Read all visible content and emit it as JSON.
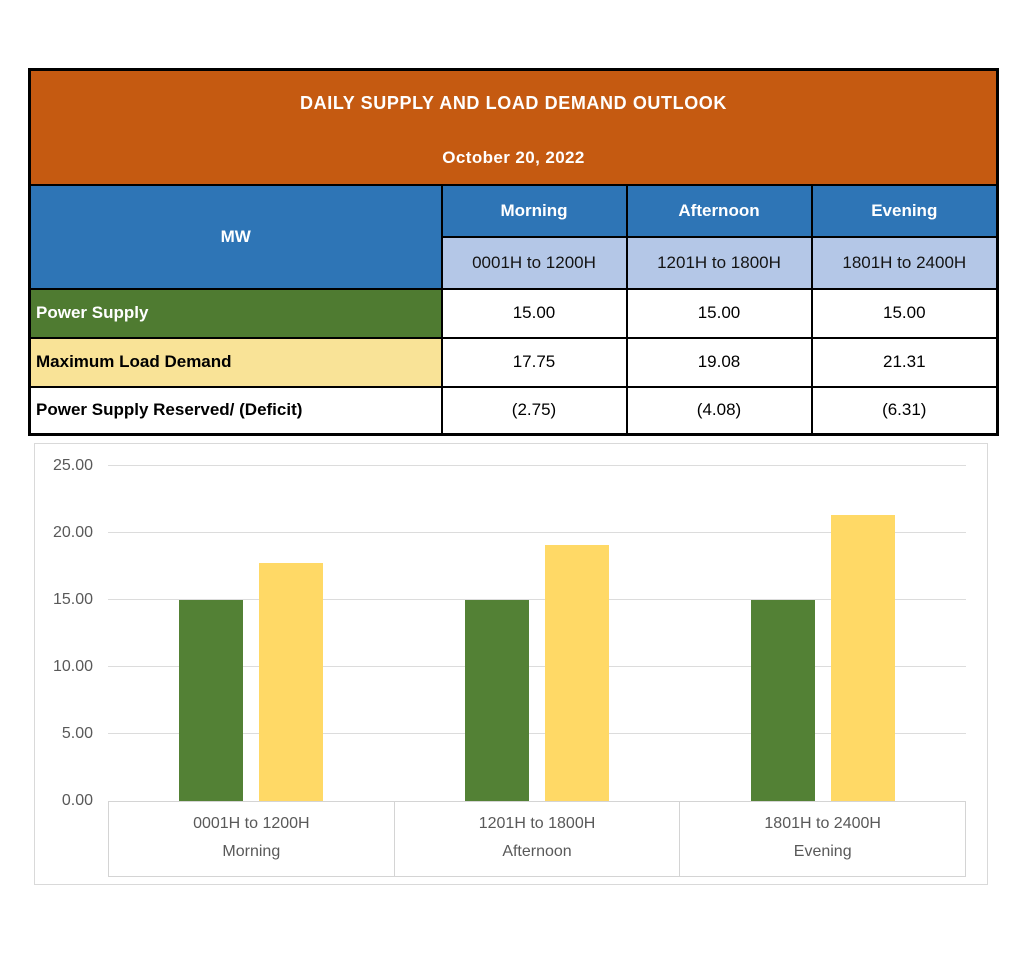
{
  "table": {
    "title": "DAILY SUPPLY AND LOAD DEMAND OUTLOOK",
    "date": "October 20, 2022",
    "unit_label": "MW",
    "col_headers": [
      {
        "period": "Morning",
        "hours": "0001H to 1200H"
      },
      {
        "period": "Afternoon",
        "hours": "1201H to 1800H"
      },
      {
        "period": "Evening",
        "hours": "1801H to 2400H"
      }
    ],
    "rows": [
      {
        "label": "Power Supply",
        "values": [
          "15.00",
          "15.00",
          "15.00"
        ]
      },
      {
        "label": "Maximum Load Demand",
        "values": [
          "17.75",
          "19.08",
          "21.31"
        ]
      },
      {
        "label": "Power Supply Reserved/ (Deficit)",
        "values": [
          "(2.75)",
          "(4.08)",
          "(6.31)"
        ]
      }
    ]
  },
  "chart_data": {
    "type": "bar",
    "title": "",
    "xlabel": "",
    "ylabel": "",
    "categories": [
      {
        "hours": "0001H to 1200H",
        "period": "Morning"
      },
      {
        "hours": "1201H to 1800H",
        "period": "Afternoon"
      },
      {
        "hours": "1801H to 2400H",
        "period": "Evening"
      }
    ],
    "series": [
      {
        "name": "Power Supply",
        "color": "#538135",
        "values": [
          15.0,
          15.0,
          15.0
        ]
      },
      {
        "name": "Maximum Load Demand",
        "color": "#FFD966",
        "values": [
          17.75,
          19.08,
          21.31
        ]
      }
    ],
    "ylim": [
      0,
      25
    ],
    "ytick_step": 5,
    "yticks": [
      "25.00",
      "20.00",
      "15.00",
      "10.00",
      "5.00",
      "0.00"
    ],
    "grid": true,
    "legend": "none"
  },
  "colors": {
    "banner_bg": "#C55A11",
    "column_header_bg": "#2E75B6",
    "subheader_bg": "#B4C7E7",
    "supply_row_bg": "#4F7B31",
    "demand_row_bg": "#F9E397",
    "bar_supply": "#538135",
    "bar_demand": "#FFD966",
    "gridline": "#DCDCDC",
    "axis_text": "#595959"
  }
}
